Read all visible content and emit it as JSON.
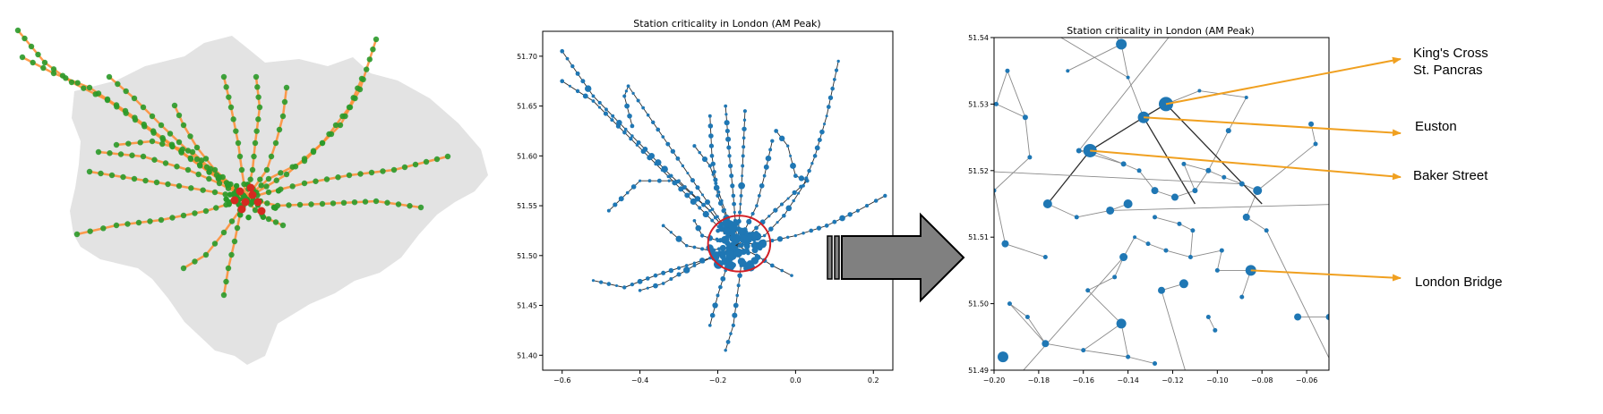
{
  "colors": {
    "map_fill": "#e3e3e3",
    "line_orange": "#ff8c30",
    "station_green": "#2a9a2a",
    "station_red": "#d42a20",
    "node_blue": "#1f77b4",
    "edge_dark": "#2b2b2b",
    "edge_gray": "#8a8a8a",
    "highlight_circle": "#d21f26",
    "arrow_fill": "#808080",
    "callout_arrow": "#f0a020"
  },
  "icons": {
    "transition_arrow": "right-block-arrow-icon"
  },
  "panel2": {
    "title": "Station criticality in London (AM Peak)",
    "x_ticks": [
      "−0.6",
      "−0.4",
      "−0.2",
      "0.0",
      "0.2"
    ],
    "y_ticks": [
      "51.40",
      "51.45",
      "51.50",
      "51.55",
      "51.60",
      "51.65",
      "51.70"
    ]
  },
  "panel3": {
    "title": "Station criticality in London (AM Peak)",
    "x_ticks": [
      "−0.20",
      "−0.18",
      "−0.16",
      "−0.14",
      "−0.12",
      "−0.10",
      "−0.08",
      "−0.06"
    ],
    "y_ticks": [
      "51.49",
      "51.50",
      "51.51",
      "51.52",
      "51.53",
      "51.54"
    ],
    "callouts": [
      {
        "lines": [
          "King's Cross",
          "St. Pancras"
        ]
      },
      {
        "lines": [
          "Euston"
        ]
      },
      {
        "lines": [
          "Baker Street"
        ]
      },
      {
        "lines": [
          "London Bridge"
        ]
      }
    ]
  },
  "chart_data": [
    {
      "type": "scatter",
      "title": "",
      "series": [
        {
          "color": "green",
          "count_approx": 260
        },
        {
          "color": "red",
          "count_approx": 12
        }
      ],
      "grid": false
    },
    {
      "type": "scatter",
      "title": "Station criticality in London (AM Peak)",
      "xlim": [
        -0.65,
        0.25
      ],
      "ylim": [
        51.385,
        51.725
      ],
      "x_ticks": [
        -0.6,
        -0.4,
        -0.2,
        0.0,
        0.2
      ],
      "y_ticks": [
        51.4,
        51.45,
        51.5,
        51.55,
        51.6,
        51.65,
        51.7
      ],
      "highlight": {
        "x": -0.145,
        "y": 51.512,
        "rx": 0.08,
        "ry": 0.028
      },
      "grid": false
    },
    {
      "type": "scatter",
      "title": "Station criticality in London (AM Peak)",
      "xlim": [
        -0.2,
        -0.05
      ],
      "ylim": [
        51.49,
        51.54
      ],
      "x_ticks": [
        -0.2,
        -0.18,
        -0.16,
        -0.14,
        -0.12,
        -0.1,
        -0.08,
        -0.06
      ],
      "y_ticks": [
        51.49,
        51.5,
        51.51,
        51.52,
        51.53,
        51.54
      ],
      "points": [
        {
          "x": -0.143,
          "y": 51.539,
          "s": 6
        },
        {
          "x": -0.194,
          "y": 51.535,
          "s": 2.5
        },
        {
          "x": -0.167,
          "y": 51.535,
          "s": 2
        },
        {
          "x": -0.123,
          "y": 51.53,
          "s": 8,
          "label": "King's Cross St. Pancras"
        },
        {
          "x": -0.199,
          "y": 51.53,
          "s": 2.5
        },
        {
          "x": -0.186,
          "y": 51.528,
          "s": 3
        },
        {
          "x": -0.133,
          "y": 51.528,
          "s": 6.5,
          "label": "Euston"
        },
        {
          "x": -0.14,
          "y": 51.534,
          "s": 2
        },
        {
          "x": -0.108,
          "y": 51.532,
          "s": 2
        },
        {
          "x": -0.087,
          "y": 51.531,
          "s": 2
        },
        {
          "x": -0.058,
          "y": 51.527,
          "s": 3
        },
        {
          "x": -0.095,
          "y": 51.526,
          "s": 3
        },
        {
          "x": -0.056,
          "y": 51.524,
          "s": 2.5
        },
        {
          "x": -0.157,
          "y": 51.523,
          "s": 7.5,
          "label": "Baker Street"
        },
        {
          "x": -0.162,
          "y": 51.523,
          "s": 3
        },
        {
          "x": -0.184,
          "y": 51.522,
          "s": 2.5
        },
        {
          "x": -0.142,
          "y": 51.521,
          "s": 3
        },
        {
          "x": -0.135,
          "y": 51.52,
          "s": 2.5
        },
        {
          "x": -0.115,
          "y": 51.521,
          "s": 2.5
        },
        {
          "x": -0.104,
          "y": 51.52,
          "s": 3
        },
        {
          "x": -0.097,
          "y": 51.519,
          "s": 2.5
        },
        {
          "x": -0.089,
          "y": 51.518,
          "s": 3
        },
        {
          "x": -0.082,
          "y": 51.517,
          "s": 5
        },
        {
          "x": -0.2,
          "y": 51.517,
          "s": 2.5
        },
        {
          "x": -0.128,
          "y": 51.517,
          "s": 4
        },
        {
          "x": -0.119,
          "y": 51.516,
          "s": 4
        },
        {
          "x": -0.11,
          "y": 51.517,
          "s": 3
        },
        {
          "x": -0.176,
          "y": 51.515,
          "s": 5
        },
        {
          "x": -0.148,
          "y": 51.514,
          "s": 4.5
        },
        {
          "x": -0.14,
          "y": 51.515,
          "s": 5
        },
        {
          "x": -0.163,
          "y": 51.513,
          "s": 2.5
        },
        {
          "x": -0.128,
          "y": 51.513,
          "s": 2.5
        },
        {
          "x": -0.087,
          "y": 51.513,
          "s": 4
        },
        {
          "x": -0.117,
          "y": 51.512,
          "s": 2.5
        },
        {
          "x": -0.111,
          "y": 51.511,
          "s": 2.5
        },
        {
          "x": -0.078,
          "y": 51.511,
          "s": 2.5
        },
        {
          "x": -0.137,
          "y": 51.51,
          "s": 2
        },
        {
          "x": -0.195,
          "y": 51.509,
          "s": 4
        },
        {
          "x": -0.131,
          "y": 51.509,
          "s": 2.5
        },
        {
          "x": -0.123,
          "y": 51.508,
          "s": 2.5
        },
        {
          "x": -0.098,
          "y": 51.508,
          "s": 2.5
        },
        {
          "x": -0.177,
          "y": 51.507,
          "s": 2.5
        },
        {
          "x": -0.142,
          "y": 51.507,
          "s": 4.5
        },
        {
          "x": -0.112,
          "y": 51.507,
          "s": 2.5
        },
        {
          "x": -0.085,
          "y": 51.505,
          "s": 6,
          "label": "London Bridge"
        },
        {
          "x": -0.1,
          "y": 51.505,
          "s": 2.5
        },
        {
          "x": -0.146,
          "y": 51.504,
          "s": 2.5
        },
        {
          "x": -0.115,
          "y": 51.503,
          "s": 5
        },
        {
          "x": -0.158,
          "y": 51.502,
          "s": 2.5
        },
        {
          "x": -0.125,
          "y": 51.502,
          "s": 4
        },
        {
          "x": -0.089,
          "y": 51.501,
          "s": 2.5
        },
        {
          "x": -0.193,
          "y": 51.5,
          "s": 2.5
        },
        {
          "x": -0.185,
          "y": 51.498,
          "s": 2.5
        },
        {
          "x": -0.104,
          "y": 51.498,
          "s": 2.5
        },
        {
          "x": -0.064,
          "y": 51.498,
          "s": 4
        },
        {
          "x": -0.05,
          "y": 51.498,
          "s": 3.5
        },
        {
          "x": -0.143,
          "y": 51.497,
          "s": 5.5
        },
        {
          "x": -0.101,
          "y": 51.496,
          "s": 2.5
        },
        {
          "x": -0.177,
          "y": 51.494,
          "s": 4
        },
        {
          "x": -0.16,
          "y": 51.493,
          "s": 2.5
        },
        {
          "x": -0.14,
          "y": 51.492,
          "s": 2.5
        },
        {
          "x": -0.196,
          "y": 51.492,
          "s": 6
        },
        {
          "x": -0.128,
          "y": 51.491,
          "s": 2.5
        }
      ],
      "grid": false
    }
  ]
}
